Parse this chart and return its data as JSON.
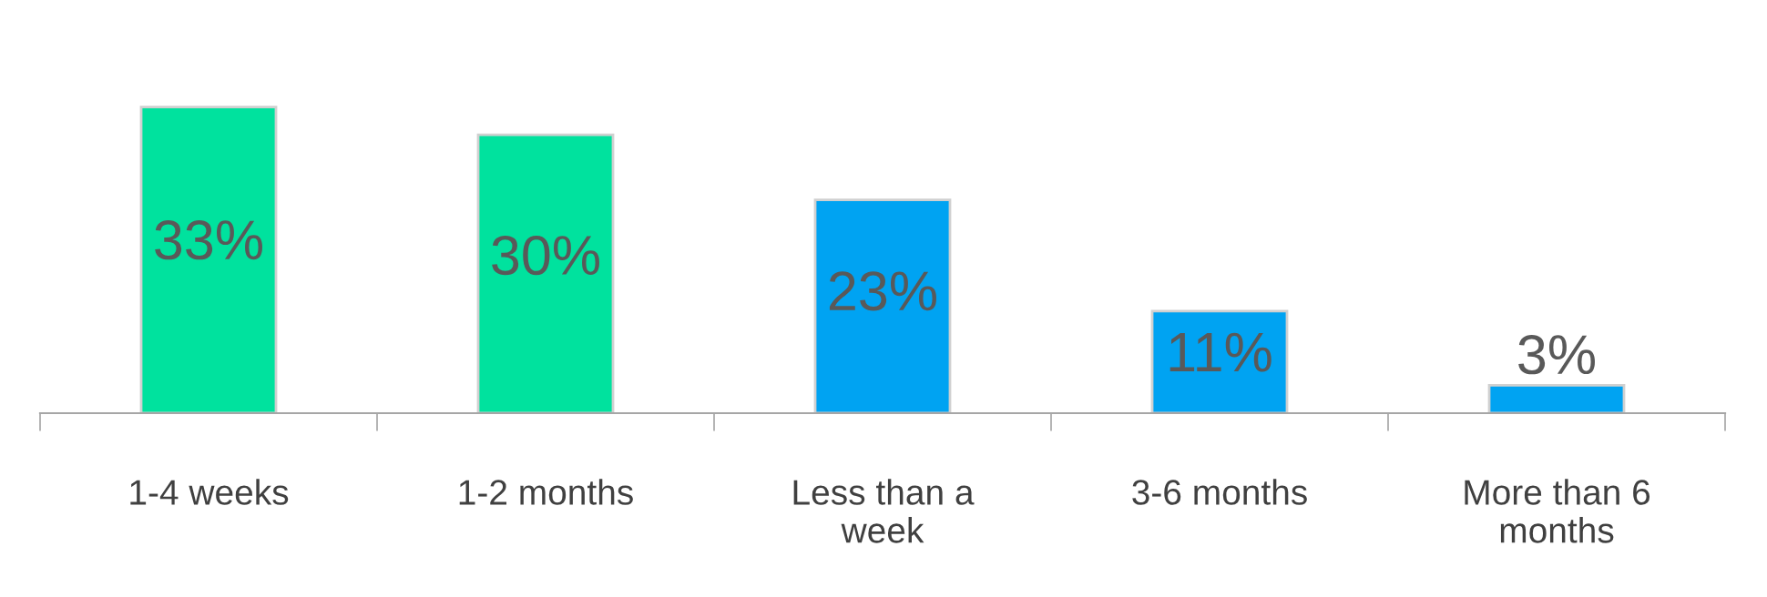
{
  "chart_data": {
    "type": "bar",
    "categories": [
      "1-4 weeks",
      "1-2 months",
      "Less than a week",
      "3-6 months",
      "More than 6 months"
    ],
    "values": [
      33,
      30,
      23,
      11,
      3
    ],
    "colors": [
      "#00e29e",
      "#00e29e",
      "#00a3f2",
      "#00a3f2",
      "#00a3f2"
    ],
    "value_labels": [
      "33%",
      "30%",
      "23%",
      "11%",
      "3%"
    ],
    "grid": false,
    "legend": false
  }
}
